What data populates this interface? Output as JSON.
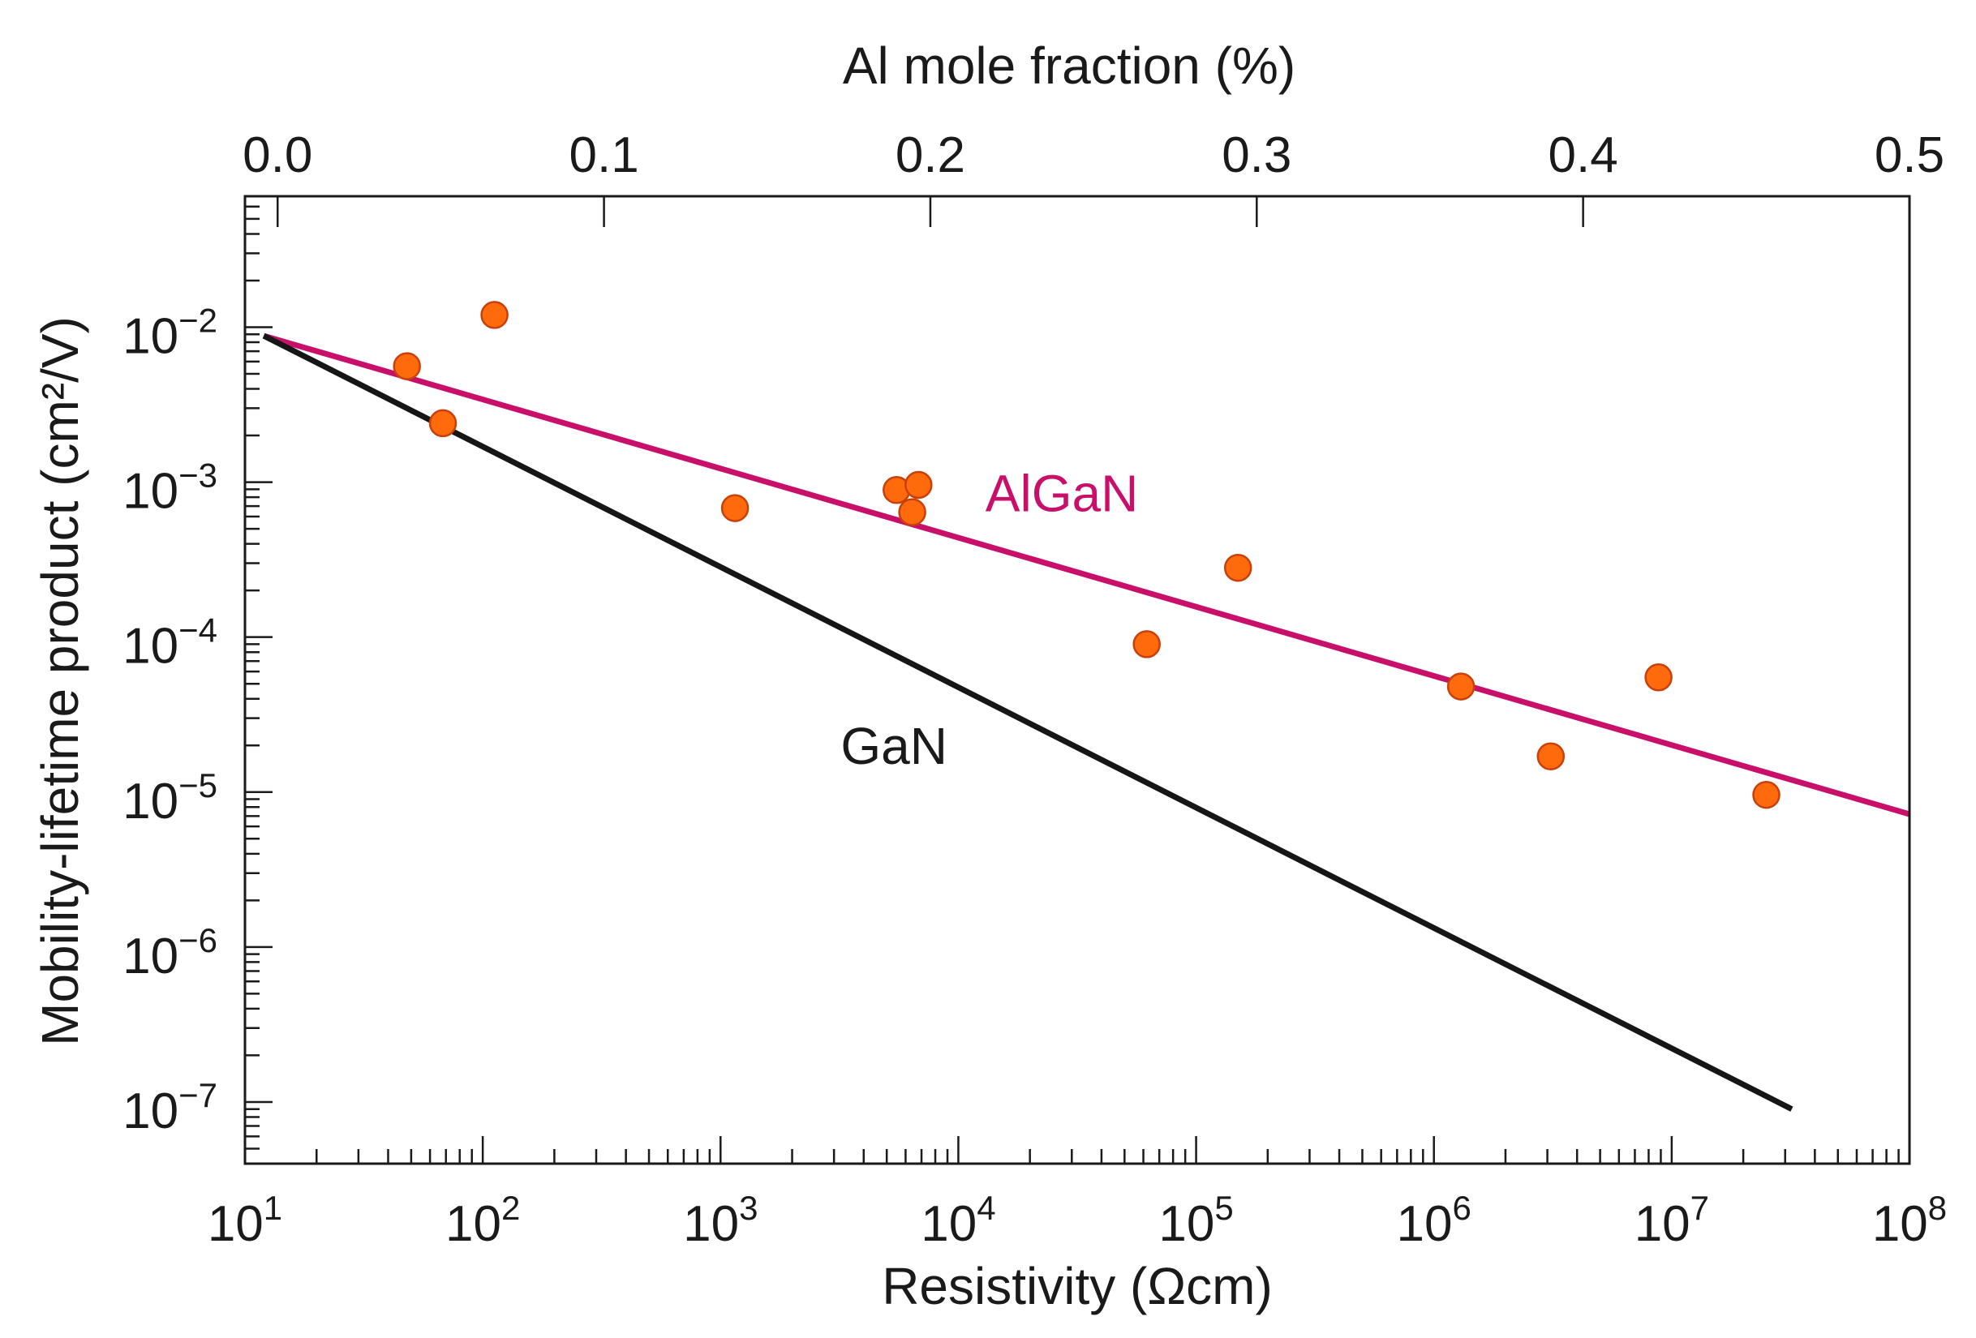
{
  "chart_data": {
    "type": "scatter",
    "xlabel": "Resistivity (Ωcm)",
    "ylabel": "Mobility-lifetime product (cm²/V)",
    "top_xlabel": "Al mole fraction (%)",
    "x_scale": "log",
    "y_scale": "log",
    "xlim": [
      10,
      100000000
    ],
    "ylim": [
      4e-08,
      0.07
    ],
    "top_xlim": [
      -0.01,
      0.5
    ],
    "grid": false,
    "x_ticks": [
      {
        "value": 10,
        "base": "10",
        "exp": "1"
      },
      {
        "value": 100,
        "base": "10",
        "exp": "2"
      },
      {
        "value": 1000,
        "base": "10",
        "exp": "3"
      },
      {
        "value": 10000,
        "base": "10",
        "exp": "4"
      },
      {
        "value": 100000,
        "base": "10",
        "exp": "5"
      },
      {
        "value": 1000000,
        "base": "10",
        "exp": "6"
      },
      {
        "value": 10000000,
        "base": "10",
        "exp": "7"
      },
      {
        "value": 100000000,
        "base": "10",
        "exp": "8"
      }
    ],
    "y_ticks": [
      {
        "value": 0.01,
        "base": "10",
        "exp": "−2"
      },
      {
        "value": 0.001,
        "base": "10",
        "exp": "−3"
      },
      {
        "value": 0.0001,
        "base": "10",
        "exp": "−4"
      },
      {
        "value": 1e-05,
        "base": "10",
        "exp": "−5"
      },
      {
        "value": 1e-06,
        "base": "10",
        "exp": "−6"
      },
      {
        "value": 1e-07,
        "base": "10",
        "exp": "−7"
      }
    ],
    "top_ticks": [
      {
        "value": 0.0,
        "label": "0.0"
      },
      {
        "value": 0.1,
        "label": "0.1"
      },
      {
        "value": 0.2,
        "label": "0.2"
      },
      {
        "value": 0.3,
        "label": "0.3"
      },
      {
        "value": 0.4,
        "label": "0.4"
      },
      {
        "value": 0.5,
        "label": "0.5"
      }
    ],
    "series": [
      {
        "kind": "points",
        "color": "#ff6a0c",
        "edge_color": "#c9400a",
        "points": [
          {
            "x": 48,
            "y": 0.0056
          },
          {
            "x": 68,
            "y": 0.0024
          },
          {
            "x": 112,
            "y": 0.012
          },
          {
            "x": 1150,
            "y": 0.00068
          },
          {
            "x": 5500,
            "y": 0.00089
          },
          {
            "x": 6400,
            "y": 0.00064
          },
          {
            "x": 6800,
            "y": 0.00096
          },
          {
            "x": 62000,
            "y": 9e-05
          },
          {
            "x": 150000,
            "y": 0.00028
          },
          {
            "x": 1300000,
            "y": 4.8e-05
          },
          {
            "x": 3100000,
            "y": 1.7e-05
          },
          {
            "x": 8800000,
            "y": 5.5e-05
          },
          {
            "x": 25000000,
            "y": 9.6e-06
          }
        ]
      },
      {
        "name": "AlGaN",
        "kind": "line",
        "color": "#c8106a",
        "points": [
          {
            "x": 12,
            "y": 0.0088
          },
          {
            "x": 100000000,
            "y": 7.2e-06
          }
        ],
        "label_at": {
          "x": 13000,
          "y": 0.00065
        }
      },
      {
        "name": "GaN",
        "kind": "line",
        "color": "#161616",
        "points": [
          {
            "x": 12,
            "y": 0.0088
          },
          {
            "x": 32000000,
            "y": 9e-08
          }
        ],
        "label_at": {
          "x": 3200,
          "y": 1.52e-05
        }
      }
    ]
  }
}
